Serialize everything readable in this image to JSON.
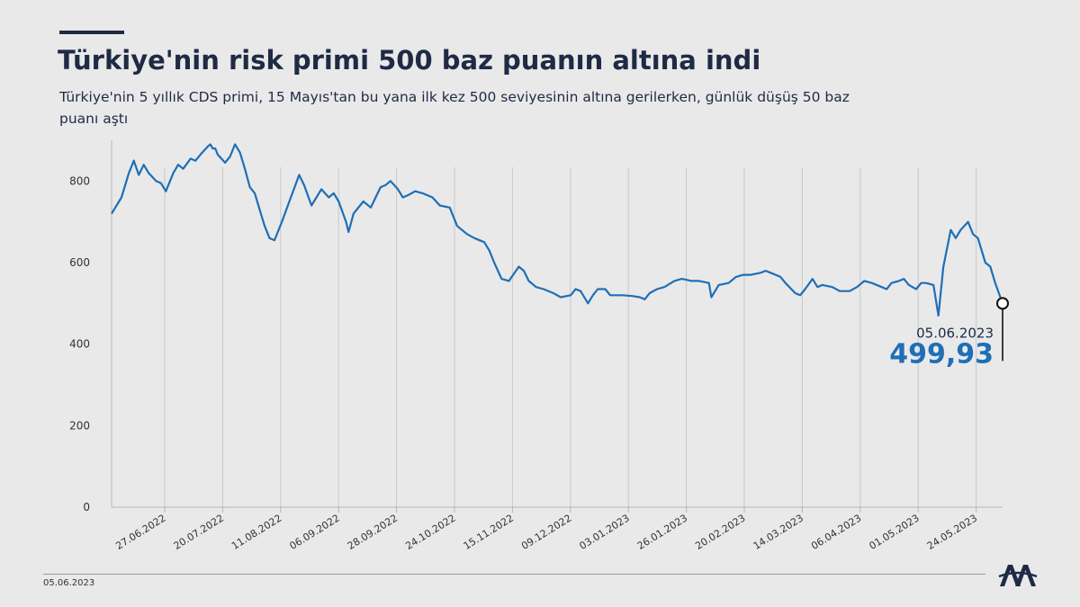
{
  "header": {
    "title": "Türkiye'nin risk primi 500 baz puanın altına indi",
    "subtitle": "Türkiye'nin 5 yıllık CDS primi, 15 Mayıs'tan bu yana ilk kez 500 seviyesinin altına gerilerken, günlük düşüş 50 baz puanı aştı"
  },
  "footer": {
    "date": "05.06.2023",
    "logo_text": "AA"
  },
  "annotation": {
    "date": "05.06.2023",
    "value_label": "499,93"
  },
  "colors": {
    "line": "#1f6fb5",
    "annotation_value": "#1f6fb5",
    "text": "#1f2a44",
    "gridline": "#c8c8c8",
    "background": "#e9e9ea"
  },
  "chart_data": {
    "type": "line",
    "title": "Türkiye'nin risk primi 500 baz puanın altına indi",
    "xlabel": "",
    "ylabel": "",
    "ylim": [
      0,
      900
    ],
    "yticks": [
      0,
      200,
      400,
      600,
      800
    ],
    "x_tick_labels": [
      "27.06.2022",
      "20.07.2022",
      "11.08.2022",
      "06.09.2022",
      "28.09.2022",
      "24.10.2022",
      "15.11.2022",
      "09.12.2022",
      "03.01.2023",
      "26.01.2023",
      "20.02.2023",
      "14.03.2023",
      "06.04.2023",
      "01.05.2023",
      "24.05.2023"
    ],
    "vertical_gridlines": true,
    "series": [
      {
        "name": "",
        "points": [
          [
            "2022-06-09",
            720
          ],
          [
            "2022-06-13",
            760
          ],
          [
            "2022-06-16",
            820
          ],
          [
            "2022-06-18",
            850
          ],
          [
            "2022-06-20",
            815
          ],
          [
            "2022-06-22",
            840
          ],
          [
            "2022-06-24",
            820
          ],
          [
            "2022-06-27",
            800
          ],
          [
            "2022-06-29",
            795
          ],
          [
            "2022-07-01",
            775
          ],
          [
            "2022-07-04",
            820
          ],
          [
            "2022-07-06",
            840
          ],
          [
            "2022-07-08",
            830
          ],
          [
            "2022-07-11",
            855
          ],
          [
            "2022-07-13",
            850
          ],
          [
            "2022-07-15",
            865
          ],
          [
            "2022-07-18",
            885
          ],
          [
            "2022-07-19",
            890
          ],
          [
            "2022-07-20",
            880
          ],
          [
            "2022-07-21",
            880
          ],
          [
            "2022-07-22",
            865
          ],
          [
            "2022-07-25",
            845
          ],
          [
            "2022-07-27",
            860
          ],
          [
            "2022-07-29",
            890
          ],
          [
            "2022-07-31",
            870
          ],
          [
            "2022-08-02",
            830
          ],
          [
            "2022-08-04",
            785
          ],
          [
            "2022-08-06",
            770
          ],
          [
            "2022-08-08",
            730
          ],
          [
            "2022-08-10",
            690
          ],
          [
            "2022-08-12",
            660
          ],
          [
            "2022-08-14",
            655
          ],
          [
            "2022-08-17",
            700
          ],
          [
            "2022-08-20",
            750
          ],
          [
            "2022-08-24",
            815
          ],
          [
            "2022-08-26",
            790
          ],
          [
            "2022-08-29",
            740
          ],
          [
            "2022-08-31",
            760
          ],
          [
            "2022-09-02",
            780
          ],
          [
            "2022-09-05",
            760
          ],
          [
            "2022-09-07",
            770
          ],
          [
            "2022-09-09",
            750
          ],
          [
            "2022-09-12",
            700
          ],
          [
            "2022-09-13",
            675
          ],
          [
            "2022-09-15",
            720
          ],
          [
            "2022-09-19",
            750
          ],
          [
            "2022-09-22",
            735
          ],
          [
            "2022-09-24",
            760
          ],
          [
            "2022-09-26",
            785
          ],
          [
            "2022-09-28",
            790
          ],
          [
            "2022-09-30",
            800
          ],
          [
            "2022-10-03",
            780
          ],
          [
            "2022-10-05",
            760
          ],
          [
            "2022-10-07",
            765
          ],
          [
            "2022-10-10",
            775
          ],
          [
            "2022-10-13",
            770
          ],
          [
            "2022-10-17",
            760
          ],
          [
            "2022-10-20",
            740
          ],
          [
            "2022-10-24",
            735
          ],
          [
            "2022-10-27",
            690
          ],
          [
            "2022-10-31",
            670
          ],
          [
            "2022-11-03",
            660
          ],
          [
            "2022-11-07",
            650
          ],
          [
            "2022-11-09",
            630
          ],
          [
            "2022-11-11",
            600
          ],
          [
            "2022-11-14",
            560
          ],
          [
            "2022-11-17",
            555
          ],
          [
            "2022-11-21",
            590
          ],
          [
            "2022-11-23",
            580
          ],
          [
            "2022-11-25",
            555
          ],
          [
            "2022-11-28",
            540
          ],
          [
            "2022-12-01",
            535
          ],
          [
            "2022-12-05",
            525
          ],
          [
            "2022-12-08",
            515
          ],
          [
            "2022-12-12",
            520
          ],
          [
            "2022-12-14",
            535
          ],
          [
            "2022-12-16",
            530
          ],
          [
            "2022-12-19",
            500
          ],
          [
            "2022-12-21",
            520
          ],
          [
            "2022-12-23",
            535
          ],
          [
            "2022-12-26",
            535
          ],
          [
            "2022-12-28",
            520
          ],
          [
            "2023-01-02",
            520
          ],
          [
            "2023-01-06",
            518
          ],
          [
            "2023-01-09",
            515
          ],
          [
            "2023-01-11",
            510
          ],
          [
            "2023-01-13",
            525
          ],
          [
            "2023-01-16",
            535
          ],
          [
            "2023-01-19",
            540
          ],
          [
            "2023-01-23",
            555
          ],
          [
            "2023-01-26",
            560
          ],
          [
            "2023-01-30",
            555
          ],
          [
            "2023-02-02",
            555
          ],
          [
            "2023-02-06",
            550
          ],
          [
            "2023-02-07",
            515
          ],
          [
            "2023-02-10",
            545
          ],
          [
            "2023-02-14",
            550
          ],
          [
            "2023-02-17",
            565
          ],
          [
            "2023-02-20",
            570
          ],
          [
            "2023-02-23",
            570
          ],
          [
            "2023-02-27",
            575
          ],
          [
            "2023-03-01",
            580
          ],
          [
            "2023-03-03",
            575
          ],
          [
            "2023-03-07",
            565
          ],
          [
            "2023-03-09",
            550
          ],
          [
            "2023-03-13",
            525
          ],
          [
            "2023-03-15",
            520
          ],
          [
            "2023-03-17",
            535
          ],
          [
            "2023-03-20",
            560
          ],
          [
            "2023-03-22",
            540
          ],
          [
            "2023-03-24",
            545
          ],
          [
            "2023-03-28",
            540
          ],
          [
            "2023-03-31",
            530
          ],
          [
            "2023-04-04",
            530
          ],
          [
            "2023-04-07",
            540
          ],
          [
            "2023-04-10",
            555
          ],
          [
            "2023-04-13",
            550
          ],
          [
            "2023-04-17",
            540
          ],
          [
            "2023-04-19",
            535
          ],
          [
            "2023-04-21",
            550
          ],
          [
            "2023-04-24",
            555
          ],
          [
            "2023-04-26",
            560
          ],
          [
            "2023-04-28",
            545
          ],
          [
            "2023-05-01",
            535
          ],
          [
            "2023-05-03",
            550
          ],
          [
            "2023-05-05",
            550
          ],
          [
            "2023-05-08",
            545
          ],
          [
            "2023-05-10",
            470
          ],
          [
            "2023-05-12",
            590
          ],
          [
            "2023-05-15",
            680
          ],
          [
            "2023-05-17",
            660
          ],
          [
            "2023-05-19",
            680
          ],
          [
            "2023-05-22",
            700
          ],
          [
            "2023-05-24",
            670
          ],
          [
            "2023-05-26",
            660
          ],
          [
            "2023-05-29",
            600
          ],
          [
            "2023-05-31",
            590
          ],
          [
            "2023-06-02",
            550
          ],
          [
            "2023-06-05",
            499.93
          ]
        ]
      }
    ]
  }
}
